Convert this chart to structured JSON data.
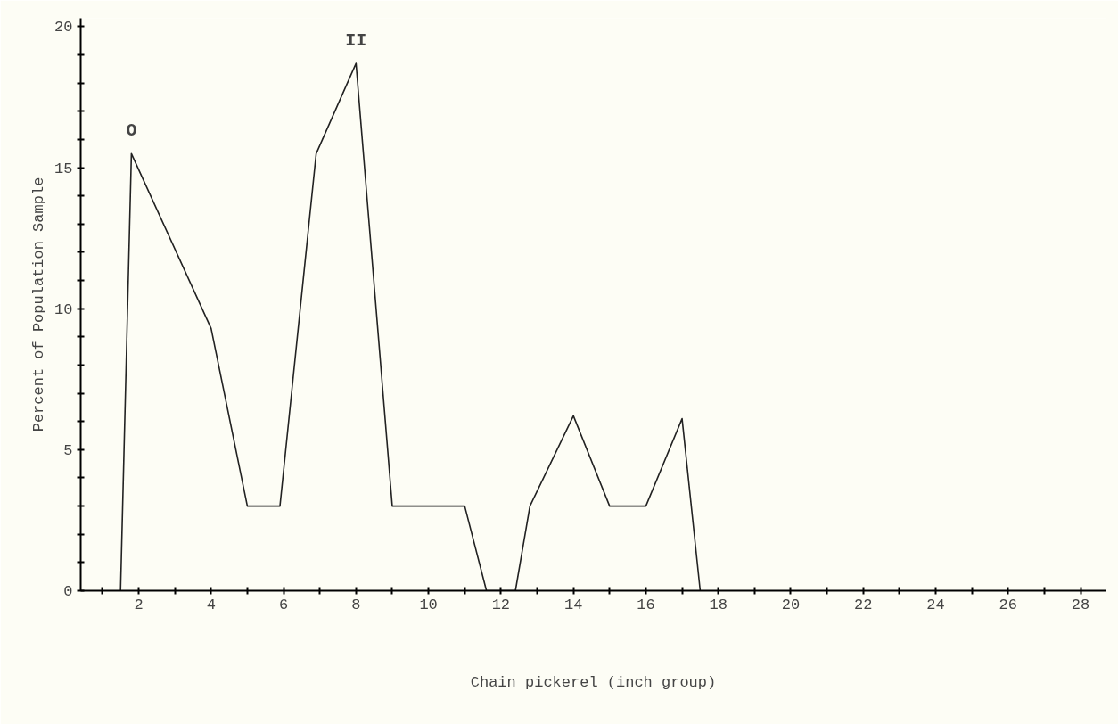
{
  "chart_data": {
    "type": "line",
    "xlabel": "Chain pickerel (inch group)",
    "ylabel": "Percent of Population Sample",
    "x": [
      1.5,
      1.8,
      4,
      5,
      5.9,
      6.9,
      8,
      9,
      11,
      11.6,
      12.4,
      12.8,
      14,
      15,
      16,
      17,
      17.5
    ],
    "series": [
      {
        "color": "#222222",
        "values": [
          0,
          15.5,
          9.3,
          3.0,
          3.0,
          15.5,
          18.7,
          3.0,
          3.0,
          0,
          0,
          3.0,
          6.2,
          3.0,
          3.0,
          6.1,
          0
        ]
      }
    ],
    "xlim": [
      0.4,
      28.7
    ],
    "ylim": [
      0,
      20.3
    ],
    "xticks": [
      {
        "value": 1,
        "label": null
      },
      2,
      {
        "value": 3,
        "label": null
      },
      4,
      {
        "value": 5,
        "label": null
      },
      6,
      {
        "value": 7,
        "label": null
      },
      8,
      {
        "value": 9,
        "label": null
      },
      10,
      {
        "value": 11,
        "label": null
      },
      12,
      {
        "value": 13,
        "label": null
      },
      14,
      {
        "value": 15,
        "label": null
      },
      16,
      {
        "value": 17,
        "label": null
      },
      18,
      {
        "value": 19,
        "label": null
      },
      20,
      {
        "value": 21,
        "label": null
      },
      22,
      {
        "value": 23,
        "label": null
      },
      24,
      {
        "value": 25,
        "label": null
      },
      26,
      {
        "value": 27,
        "label": null
      },
      28
    ],
    "yticks": [
      0,
      {
        "value": 1,
        "label": null
      },
      {
        "value": 2,
        "label": null
      },
      {
        "value": 3,
        "label": null
      },
      {
        "value": 4,
        "label": null
      },
      5,
      {
        "value": 6,
        "label": null
      },
      {
        "value": 7,
        "label": null
      },
      {
        "value": 8,
        "label": null
      },
      {
        "value": 9,
        "label": null
      },
      10,
      {
        "value": 11,
        "label": null
      },
      {
        "value": 12,
        "label": null
      },
      {
        "value": 13,
        "label": null
      },
      {
        "value": 14,
        "label": null
      },
      15,
      {
        "value": 16,
        "label": null
      },
      {
        "value": 17,
        "label": null
      },
      {
        "value": 18,
        "label": null
      },
      {
        "value": 19,
        "label": null
      },
      20
    ],
    "annotations": [
      {
        "text": "O",
        "x": 1.8,
        "y": 15.5
      },
      {
        "text": "II",
        "x": 8,
        "y": 18.7
      }
    ],
    "grid": false,
    "marker": "none",
    "line_style": "solid"
  }
}
